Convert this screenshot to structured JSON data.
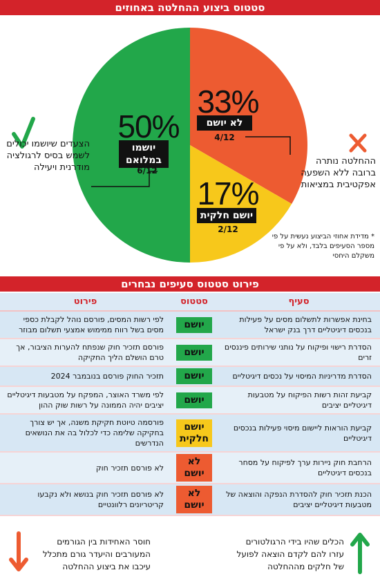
{
  "header": {
    "title": "סטטוס ביצוע ההחלטה באחוזים"
  },
  "colors": {
    "done": "#22a74a",
    "partial": "#f7c81b",
    "not_done": "#ed5b31",
    "banner": "#d3232a"
  },
  "chart_data": {
    "type": "pie",
    "title": "סטטוס ביצוע ההחלטה באחוזים",
    "slices": [
      {
        "label": "לא יושם",
        "percent": "33%",
        "fraction": "4/12",
        "value": 4,
        "color": "#ed5b31"
      },
      {
        "label": "יושם חלקית",
        "percent": "17%",
        "fraction": "2/12",
        "value": 2,
        "color": "#f7c81b"
      },
      {
        "label": "יושמו במלואם",
        "percent": "50%",
        "fraction": "6/12",
        "value": 6,
        "color": "#22a74a"
      }
    ]
  },
  "notes": {
    "left": "הצעדים שיושמו יכולים לשמש בסיס לרגולציה מודרנית ויעילה",
    "right": "ההחלטה נותרה ברובה ללא השפעה אפקטיבית במציאות",
    "method": "* מדידת אחוזי הביצוע נעשית על פי מספר הסעיפים בלבד, ולא על פי משקלם היחסי",
    "check_icon": "check-icon",
    "x_icon": "x-icon"
  },
  "section": {
    "title": "פירוט סטטוס סעיפים נבחרים"
  },
  "table": {
    "headers": {
      "item": "סעיף",
      "status": "סטטוס",
      "detail": "פירוט"
    },
    "rows": [
      {
        "item": "בחינת אפשרות לתשלום מסים על פעילות בנכסים דיגיטליים דרך בנק ישראל",
        "status": "יושם",
        "kind": "done",
        "detail": "לפי רשות המסים, פורסם נוהל לקבלת כספי מסים בשל רווח ממימוש אמצעי תשלום מבוזר"
      },
      {
        "item": "הסדרת רישוי ופיקוח על נותני שירותים פיננסים זרים",
        "status": "יושם",
        "kind": "done",
        "detail": "פורסם תזכיר חוק שנפתח להערות הציבור, אך טרם הושלם הליך החקיקה"
      },
      {
        "item": "הסדרת מדריניות המיסוי על נכסים דיגיטליים",
        "status": "יושם",
        "kind": "done",
        "detail": "תזכיר החוק פורסם בנובמבר 2024"
      },
      {
        "item": "קביעת זהות רשות הפיקוח על מטבעות דיגיטליים יציבים",
        "status": "יושם",
        "kind": "done",
        "detail": "לפי משרד האוצר, המפקח על מטבעות דיגיטליים יציבים יהיה הממונה על רשות שוק ההון"
      },
      {
        "item": "קביעת הוראות ליישום מיסוי פעילות בנכסים דיגיטליים",
        "status": "יושם חלקית",
        "kind": "partial",
        "detail": "פורסמה טיוטת חקיקת משנה, אך יש צורך בחקיקה שלימה כדי לכלול בה את הנושאים הנדרשים"
      },
      {
        "item": "הרחבת חוק ניירות ערך לפיקוח על מסחר בנכסים דיגיטליים",
        "status": "לא יושם",
        "kind": "fail",
        "detail": "לא פורסם תזכיר חוק"
      },
      {
        "item": "הכנת תזכיר חוק להסדרת הנפקה והוצאה של מטבעות דיגיטליים יציבים",
        "status": "לא יושם",
        "kind": "fail",
        "detail": "לא פורסם תזכיר חוק בנושא ולא נקבעו קריטריונים רלוונטיים"
      }
    ]
  },
  "footer": {
    "right_text": "הכלים שהיו בידי הרגולטורים עזרו להם לקדם הוצאה לפועל של חלקים מההחלטה",
    "left_text": "חוסר האחידות בין הגורמים המעורבים והיעדר גורם מתכלל עיכבו את ביצוע ההחלטה",
    "up_arrow_icon": "arrow-up-icon",
    "down_arrow_icon": "arrow-down-icon"
  }
}
